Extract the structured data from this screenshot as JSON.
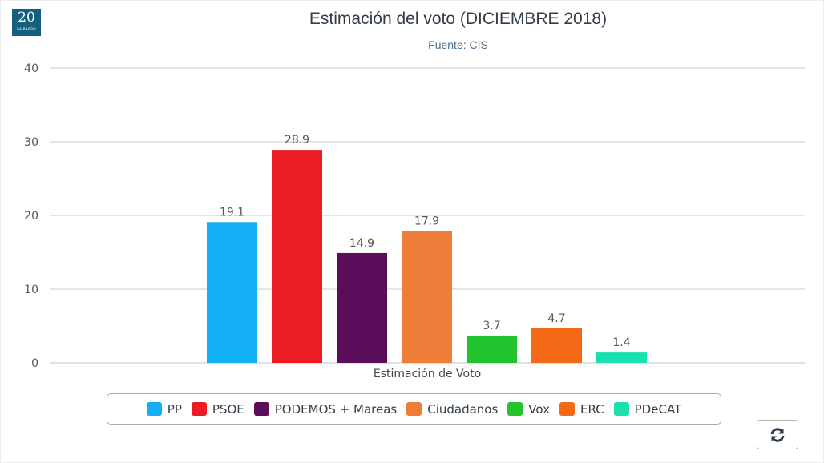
{
  "logo": {
    "big": "20",
    "small": "LA RAZÓN"
  },
  "refresh_button": {
    "icon": "refresh-icon"
  },
  "chart_data": {
    "type": "bar",
    "title": "Estimación del voto (DICIEMBRE 2018)",
    "subtitle": "Fuente: CIS",
    "xlabel": "Estimación de Voto",
    "ylabel": "",
    "ylim": [
      0,
      40
    ],
    "yticks": [
      0,
      10,
      20,
      30,
      40
    ],
    "grid": true,
    "legend_position": "bottom",
    "categories": [
      "Estimación de Voto"
    ],
    "series": [
      {
        "name": "PP",
        "values": [
          19.1
        ],
        "color": "#14b0f5"
      },
      {
        "name": "PSOE",
        "values": [
          28.9
        ],
        "color": "#ec1c24"
      },
      {
        "name": "PODEMOS + Mareas",
        "values": [
          14.9
        ],
        "color": "#5c0d59"
      },
      {
        "name": "Ciudadanos",
        "values": [
          17.9
        ],
        "color": "#ef7d3a"
      },
      {
        "name": "Vox",
        "values": [
          3.7
        ],
        "color": "#22c32d"
      },
      {
        "name": "ERC",
        "values": [
          4.7
        ],
        "color": "#f26a16"
      },
      {
        "name": "PDeCAT",
        "values": [
          1.4
        ],
        "color": "#18e0ae"
      }
    ]
  }
}
